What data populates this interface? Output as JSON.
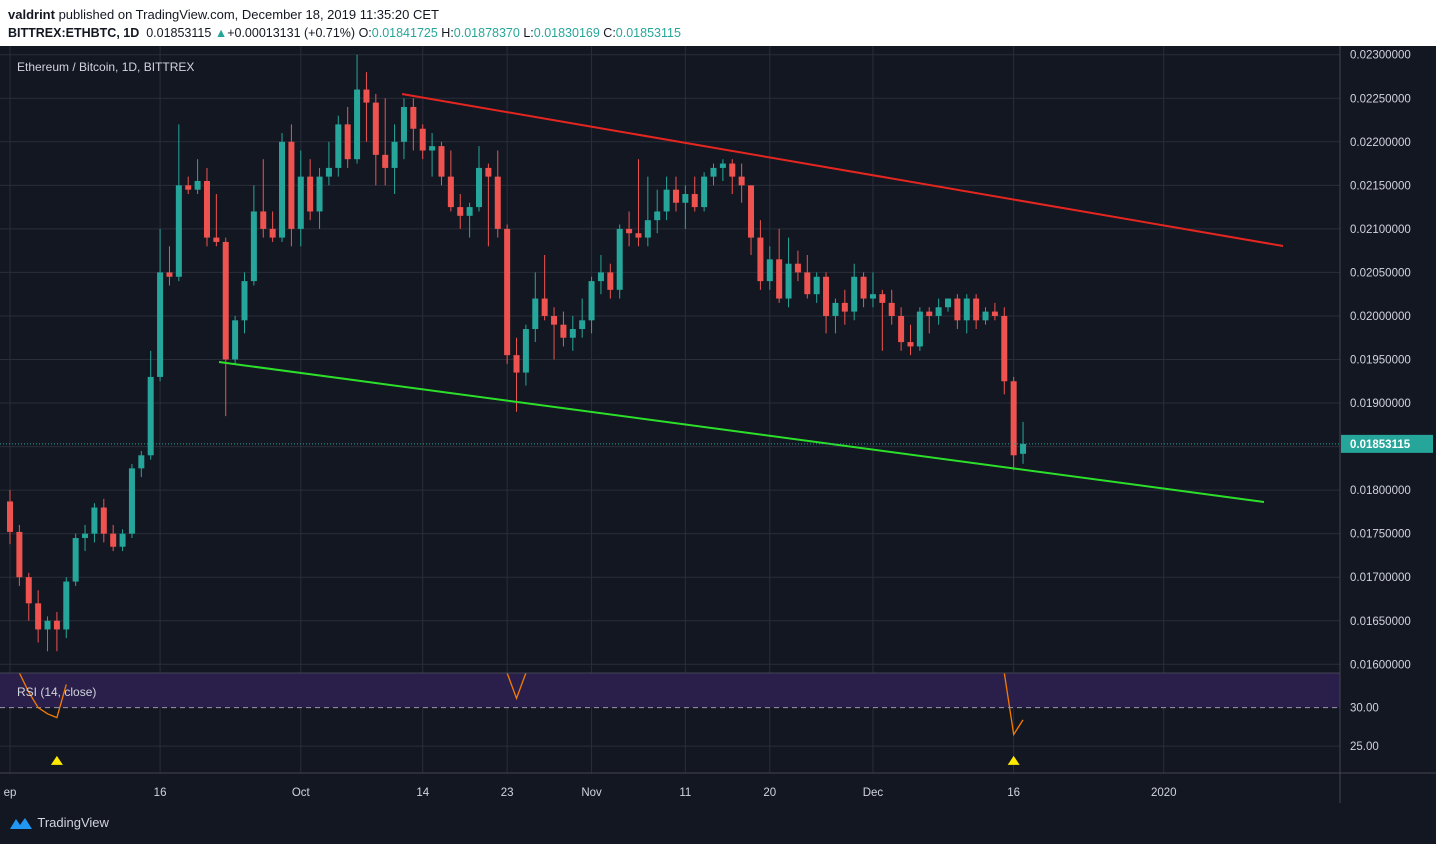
{
  "header": {
    "author": "valdrint",
    "published_text": " published on TradingView.com, December 18, 2019 11:35:20 CET",
    "symbol": "BITTREX:ETHBTC, 1D",
    "last": "0.01853115",
    "change": "+0.00013131 (+0.71%)",
    "o_label": "O:",
    "o_value": "0.01841725",
    "h_label": "H:",
    "h_value": "0.01878370",
    "l_label": "L:",
    "l_value": "0.01830169",
    "c_label": "C:",
    "c_value": "0.01853115"
  },
  "footer": {
    "logo_text": "TradingView"
  },
  "colors": {
    "background": "#131722",
    "up": "#26a69a",
    "down": "#ef5350",
    "resistance": "#e52620",
    "support": "#2ce02a",
    "rsi": "#f57c00",
    "rsi_band": "#2a1f4a",
    "marker": "#ffeb00",
    "grid": "#2a2e39"
  },
  "chart_data": [
    {
      "type": "candlestick",
      "title": "Ethereum / Bitcoin, 1D, BITTREX",
      "ylim": [
        0.0159,
        0.0231
      ],
      "y_ticks": [
        "0.01600000",
        "0.01650000",
        "0.01700000",
        "0.01750000",
        "0.01800000",
        "0.01850000",
        "0.01900000",
        "0.01950000",
        "0.02000000",
        "0.02050000",
        "0.02100000",
        "0.02150000",
        "0.02200000",
        "0.02250000",
        "0.02300000"
      ],
      "x_ticks": [
        {
          "label": "ep",
          "day": 0
        },
        {
          "label": "16",
          "day": 16
        },
        {
          "label": "Oct",
          "day": 31
        },
        {
          "label": "14",
          "day": 44
        },
        {
          "label": "23",
          "day": 53
        },
        {
          "label": "Nov",
          "day": 62
        },
        {
          "label": "11",
          "day": 72
        },
        {
          "label": "20",
          "day": 81
        },
        {
          "label": "Dec",
          "day": 92
        },
        {
          "label": "16",
          "day": 107
        },
        {
          "label": "2020",
          "day": 123
        }
      ],
      "last_price_label": "0.01853115",
      "ohlc": [
        [
          0.01787,
          0.018,
          0.01738,
          0.01752
        ],
        [
          0.01752,
          0.0176,
          0.0169,
          0.017
        ],
        [
          0.017,
          0.01705,
          0.0165,
          0.0167
        ],
        [
          0.0167,
          0.01685,
          0.01625,
          0.0164
        ],
        [
          0.0164,
          0.01655,
          0.01615,
          0.0165
        ],
        [
          0.0165,
          0.0166,
          0.01615,
          0.0164
        ],
        [
          0.0164,
          0.017,
          0.0163,
          0.01695
        ],
        [
          0.01695,
          0.0175,
          0.0169,
          0.01745
        ],
        [
          0.01745,
          0.0176,
          0.0173,
          0.0175
        ],
        [
          0.0175,
          0.01785,
          0.0174,
          0.0178
        ],
        [
          0.0178,
          0.0179,
          0.0174,
          0.0175
        ],
        [
          0.0175,
          0.0176,
          0.0173,
          0.01735
        ],
        [
          0.01735,
          0.01755,
          0.0173,
          0.0175
        ],
        [
          0.0175,
          0.0183,
          0.01745,
          0.01825
        ],
        [
          0.01825,
          0.01845,
          0.01815,
          0.0184
        ],
        [
          0.0184,
          0.0196,
          0.01835,
          0.0193
        ],
        [
          0.0193,
          0.021,
          0.01925,
          0.0205
        ],
        [
          0.0205,
          0.0208,
          0.02035,
          0.02045
        ],
        [
          0.02045,
          0.0222,
          0.0204,
          0.0215
        ],
        [
          0.0215,
          0.0216,
          0.0214,
          0.02145
        ],
        [
          0.02145,
          0.0218,
          0.0214,
          0.02155
        ],
        [
          0.02155,
          0.0217,
          0.0208,
          0.0209
        ],
        [
          0.0209,
          0.0214,
          0.0208,
          0.02085
        ],
        [
          0.02085,
          0.0209,
          0.01885,
          0.0195
        ],
        [
          0.0195,
          0.02,
          0.01945,
          0.01995
        ],
        [
          0.01995,
          0.0205,
          0.0198,
          0.0204
        ],
        [
          0.0204,
          0.0215,
          0.02035,
          0.0212
        ],
        [
          0.0212,
          0.0218,
          0.0209,
          0.021
        ],
        [
          0.021,
          0.0212,
          0.02085,
          0.0209
        ],
        [
          0.0209,
          0.0221,
          0.02085,
          0.022
        ],
        [
          0.022,
          0.0222,
          0.0208,
          0.021
        ],
        [
          0.021,
          0.0219,
          0.0208,
          0.0216
        ],
        [
          0.0216,
          0.0218,
          0.0211,
          0.0212
        ],
        [
          0.0212,
          0.0217,
          0.021,
          0.0216
        ],
        [
          0.0216,
          0.022,
          0.0215,
          0.0217
        ],
        [
          0.0217,
          0.0223,
          0.0216,
          0.0222
        ],
        [
          0.0222,
          0.0224,
          0.0217,
          0.0218
        ],
        [
          0.0218,
          0.023,
          0.02175,
          0.0226
        ],
        [
          0.0226,
          0.0228,
          0.022,
          0.02245
        ],
        [
          0.02245,
          0.02255,
          0.0215,
          0.02185
        ],
        [
          0.02185,
          0.0225,
          0.0215,
          0.0217
        ],
        [
          0.0217,
          0.0222,
          0.0214,
          0.022
        ],
        [
          0.022,
          0.0225,
          0.0218,
          0.0224
        ],
        [
          0.0224,
          0.0225,
          0.0219,
          0.02215
        ],
        [
          0.02215,
          0.0222,
          0.0218,
          0.0219
        ],
        [
          0.0219,
          0.0221,
          0.0216,
          0.02195
        ],
        [
          0.02195,
          0.022,
          0.0215,
          0.0216
        ],
        [
          0.0216,
          0.0219,
          0.0212,
          0.02125
        ],
        [
          0.02125,
          0.0214,
          0.021,
          0.02115
        ],
        [
          0.02115,
          0.0213,
          0.0209,
          0.02125
        ],
        [
          0.02125,
          0.02195,
          0.0212,
          0.0217
        ],
        [
          0.0217,
          0.02175,
          0.0208,
          0.0216
        ],
        [
          0.0216,
          0.0219,
          0.0209,
          0.021
        ],
        [
          0.021,
          0.02105,
          0.01945,
          0.01955
        ],
        [
          0.01955,
          0.01975,
          0.0189,
          0.01935
        ],
        [
          0.01935,
          0.0199,
          0.0192,
          0.01985
        ],
        [
          0.01985,
          0.0205,
          0.0197,
          0.0202
        ],
        [
          0.0202,
          0.0207,
          0.01995,
          0.02
        ],
        [
          0.02,
          0.0201,
          0.0195,
          0.0199
        ],
        [
          0.0199,
          0.02005,
          0.01965,
          0.01975
        ],
        [
          0.01975,
          0.02,
          0.0196,
          0.01985
        ],
        [
          0.01985,
          0.0202,
          0.01975,
          0.01995
        ],
        [
          0.01995,
          0.02045,
          0.0198,
          0.0204
        ],
        [
          0.0204,
          0.0207,
          0.02025,
          0.0205
        ],
        [
          0.0205,
          0.0206,
          0.0202,
          0.0203
        ],
        [
          0.0203,
          0.02105,
          0.0202,
          0.021
        ],
        [
          0.021,
          0.0212,
          0.0208,
          0.02095
        ],
        [
          0.02095,
          0.0218,
          0.0208,
          0.0209
        ],
        [
          0.0209,
          0.0216,
          0.0208,
          0.0211
        ],
        [
          0.0211,
          0.02145,
          0.02095,
          0.0212
        ],
        [
          0.0212,
          0.0216,
          0.0211,
          0.02145
        ],
        [
          0.02145,
          0.0216,
          0.0212,
          0.0213
        ],
        [
          0.0213,
          0.0215,
          0.021,
          0.0214
        ],
        [
          0.0214,
          0.0216,
          0.0212,
          0.02125
        ],
        [
          0.02125,
          0.02165,
          0.0212,
          0.0216
        ],
        [
          0.0216,
          0.02175,
          0.0215,
          0.0217
        ],
        [
          0.0217,
          0.0218,
          0.02155,
          0.02175
        ],
        [
          0.02175,
          0.0218,
          0.0214,
          0.0216
        ],
        [
          0.0216,
          0.02175,
          0.0213,
          0.0215
        ],
        [
          0.0215,
          0.0215,
          0.0207,
          0.0209
        ],
        [
          0.0209,
          0.0211,
          0.0203,
          0.0204
        ],
        [
          0.0204,
          0.0208,
          0.0203,
          0.02065
        ],
        [
          0.02065,
          0.021,
          0.02015,
          0.0202
        ],
        [
          0.0202,
          0.0209,
          0.0201,
          0.0206
        ],
        [
          0.0206,
          0.02075,
          0.0204,
          0.0205
        ],
        [
          0.0205,
          0.0207,
          0.0202,
          0.02025
        ],
        [
          0.02025,
          0.0205,
          0.02015,
          0.02045
        ],
        [
          0.02045,
          0.0205,
          0.0198,
          0.02
        ],
        [
          0.02,
          0.0202,
          0.0198,
          0.02015
        ],
        [
          0.02015,
          0.0203,
          0.0199,
          0.02005
        ],
        [
          0.02005,
          0.0206,
          0.01995,
          0.02045
        ],
        [
          0.02045,
          0.0205,
          0.0201,
          0.0202
        ],
        [
          0.0202,
          0.0205,
          0.0201,
          0.02025
        ],
        [
          0.02025,
          0.0203,
          0.0196,
          0.02015
        ],
        [
          0.02015,
          0.0203,
          0.0199,
          0.02
        ],
        [
          0.02,
          0.0201,
          0.0196,
          0.0197
        ],
        [
          0.0197,
          0.0199,
          0.01955,
          0.01965
        ],
        [
          0.01965,
          0.0201,
          0.0196,
          0.02005
        ],
        [
          0.02005,
          0.0201,
          0.0198,
          0.02
        ],
        [
          0.02,
          0.0202,
          0.0199,
          0.0201
        ],
        [
          0.0201,
          0.0202,
          0.02005,
          0.0202
        ],
        [
          0.0202,
          0.02025,
          0.01985,
          0.01995
        ],
        [
          0.01995,
          0.02025,
          0.0198,
          0.0202
        ],
        [
          0.0202,
          0.02025,
          0.01985,
          0.01995
        ],
        [
          0.01995,
          0.0201,
          0.0199,
          0.02005
        ],
        [
          0.02005,
          0.02015,
          0.01995,
          0.02
        ],
        [
          0.02,
          0.0201,
          0.0191,
          0.01925
        ],
        [
          0.01925,
          0.0193,
          0.01823,
          0.0184
        ],
        [
          0.01841725,
          0.0187837,
          0.01830169,
          0.01853115
        ]
      ]
    },
    {
      "type": "line",
      "title": "RSI (14, close)",
      "ylim": [
        21.5,
        34.5
      ],
      "y_ticks": [
        "30.00",
        "25.00"
      ],
      "band": [
        30,
        70
      ],
      "segments": [
        {
          "x": [
            1,
            2,
            3,
            4,
            5,
            6
          ],
          "y": [
            34.5,
            32,
            30,
            29.2,
            28.7,
            33
          ]
        },
        {
          "x": [
            53,
            54,
            55
          ],
          "y": [
            34.5,
            31.2,
            34.5
          ]
        },
        {
          "x": [
            106,
            107,
            108
          ],
          "y": [
            34.5,
            26.5,
            28.4
          ]
        }
      ],
      "markers": [
        5,
        107
      ]
    }
  ]
}
